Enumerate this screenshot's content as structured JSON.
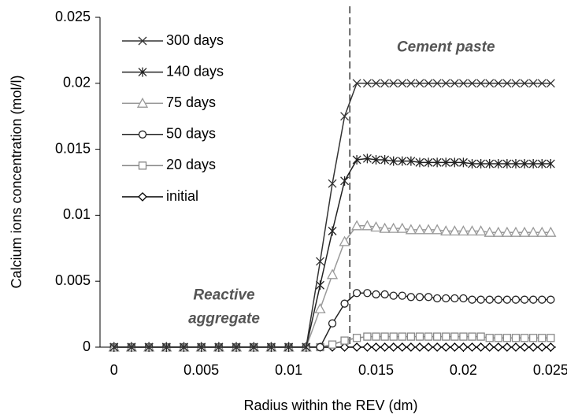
{
  "chart_data": {
    "type": "line",
    "x_label": "Radius within the REV (dm)",
    "y_label": "Calcium ions concentration (mol/l)",
    "x": [
      0,
      0.001,
      0.002,
      0.003,
      0.004,
      0.005,
      0.006,
      0.007,
      0.008,
      0.009,
      0.01,
      0.011,
      0.0118,
      0.0125,
      0.0132,
      0.0139,
      0.0145,
      0.015,
      0.0155,
      0.016,
      0.0165,
      0.017,
      0.0175,
      0.018,
      0.0185,
      0.019,
      0.0195,
      0.02,
      0.0205,
      0.021,
      0.0215,
      0.022,
      0.0225,
      0.023,
      0.0235,
      0.024,
      0.0245,
      0.025
    ],
    "series": [
      {
        "name": "300 days",
        "color": "#333333",
        "marker": "x",
        "values": [
          0,
          0,
          0,
          0,
          0,
          0,
          0,
          0,
          0,
          0,
          0,
          0,
          0.0065,
          0.0124,
          0.0175,
          0.02,
          0.02,
          0.02,
          0.02,
          0.02,
          0.02,
          0.02,
          0.02,
          0.02,
          0.02,
          0.02,
          0.02,
          0.02,
          0.02,
          0.02,
          0.02,
          0.02,
          0.02,
          0.02,
          0.02,
          0.02,
          0.02,
          0.02
        ]
      },
      {
        "name": "140 days",
        "color": "#222222",
        "marker": "star",
        "values": [
          0,
          0,
          0,
          0,
          0,
          0,
          0,
          0,
          0,
          0,
          0,
          0,
          0.0047,
          0.0088,
          0.0126,
          0.0142,
          0.0143,
          0.0142,
          0.0142,
          0.0141,
          0.0141,
          0.0141,
          0.014,
          0.014,
          0.014,
          0.014,
          0.014,
          0.014,
          0.0139,
          0.0139,
          0.0139,
          0.0139,
          0.0139,
          0.0139,
          0.0139,
          0.0139,
          0.0139,
          0.0139
        ]
      },
      {
        "name": "75 days",
        "color": "#999999",
        "marker": "triangle",
        "values": [
          0,
          0,
          0,
          0,
          0,
          0,
          0,
          0,
          0,
          0,
          0,
          0,
          0.0029,
          0.0055,
          0.008,
          0.0092,
          0.0092,
          0.0091,
          0.009,
          0.009,
          0.009,
          0.0089,
          0.0089,
          0.0089,
          0.0089,
          0.0088,
          0.0088,
          0.0088,
          0.0088,
          0.0088,
          0.0087,
          0.0087,
          0.0087,
          0.0087,
          0.0087,
          0.0087,
          0.0087,
          0.0087
        ]
      },
      {
        "name": "50 days",
        "color": "#222222",
        "marker": "circle",
        "values": [
          0,
          0,
          0,
          0,
          0,
          0,
          0,
          0,
          0,
          0,
          0,
          0,
          0,
          0.0018,
          0.0033,
          0.0041,
          0.0041,
          0.004,
          0.004,
          0.0039,
          0.0039,
          0.0038,
          0.0038,
          0.0038,
          0.0037,
          0.0037,
          0.0037,
          0.0037,
          0.0036,
          0.0036,
          0.0036,
          0.0036,
          0.0036,
          0.0036,
          0.0036,
          0.0036,
          0.0036,
          0.0036
        ]
      },
      {
        "name": "20 days",
        "color": "#888888",
        "marker": "square",
        "values": [
          0,
          0,
          0,
          0,
          0,
          0,
          0,
          0,
          0,
          0,
          0,
          0,
          0,
          0.0002,
          0.0005,
          0.0007,
          0.0008,
          0.0008,
          0.0008,
          0.0008,
          0.0008,
          0.0008,
          0.0008,
          0.0008,
          0.0008,
          0.0008,
          0.0008,
          0.0008,
          0.0008,
          0.0008,
          0.0007,
          0.0007,
          0.0007,
          0.0007,
          0.0007,
          0.0007,
          0.0007,
          0.0007
        ]
      },
      {
        "name": "initial",
        "color": "#000000",
        "marker": "diamond",
        "values": [
          0,
          0,
          0,
          0,
          0,
          0,
          0,
          0,
          0,
          0,
          0,
          0,
          0,
          0,
          0,
          0,
          0,
          0,
          0,
          0,
          0,
          0,
          0,
          0,
          0,
          0,
          0,
          0,
          0,
          0,
          0,
          0,
          0,
          0,
          0,
          0,
          0,
          0
        ]
      }
    ],
    "xlim": [
      -0.0008,
      0.0253
    ],
    "xticks": [
      0,
      0.005,
      0.01,
      0.015,
      0.02,
      0.025
    ],
    "ylim": [
      0,
      0.025
    ],
    "yticks": [
      0,
      0.005,
      0.01,
      0.015,
      0.02,
      0.025
    ],
    "vline": 0.0135,
    "annotations": [
      {
        "lines": [
          "Cement paste"
        ],
        "x": 0.019,
        "y": 0.0227
      },
      {
        "lines": [
          "Reactive",
          "aggregate"
        ],
        "x": 0.0063,
        "y": 0.0039
      }
    ],
    "legend": "upper-left"
  }
}
